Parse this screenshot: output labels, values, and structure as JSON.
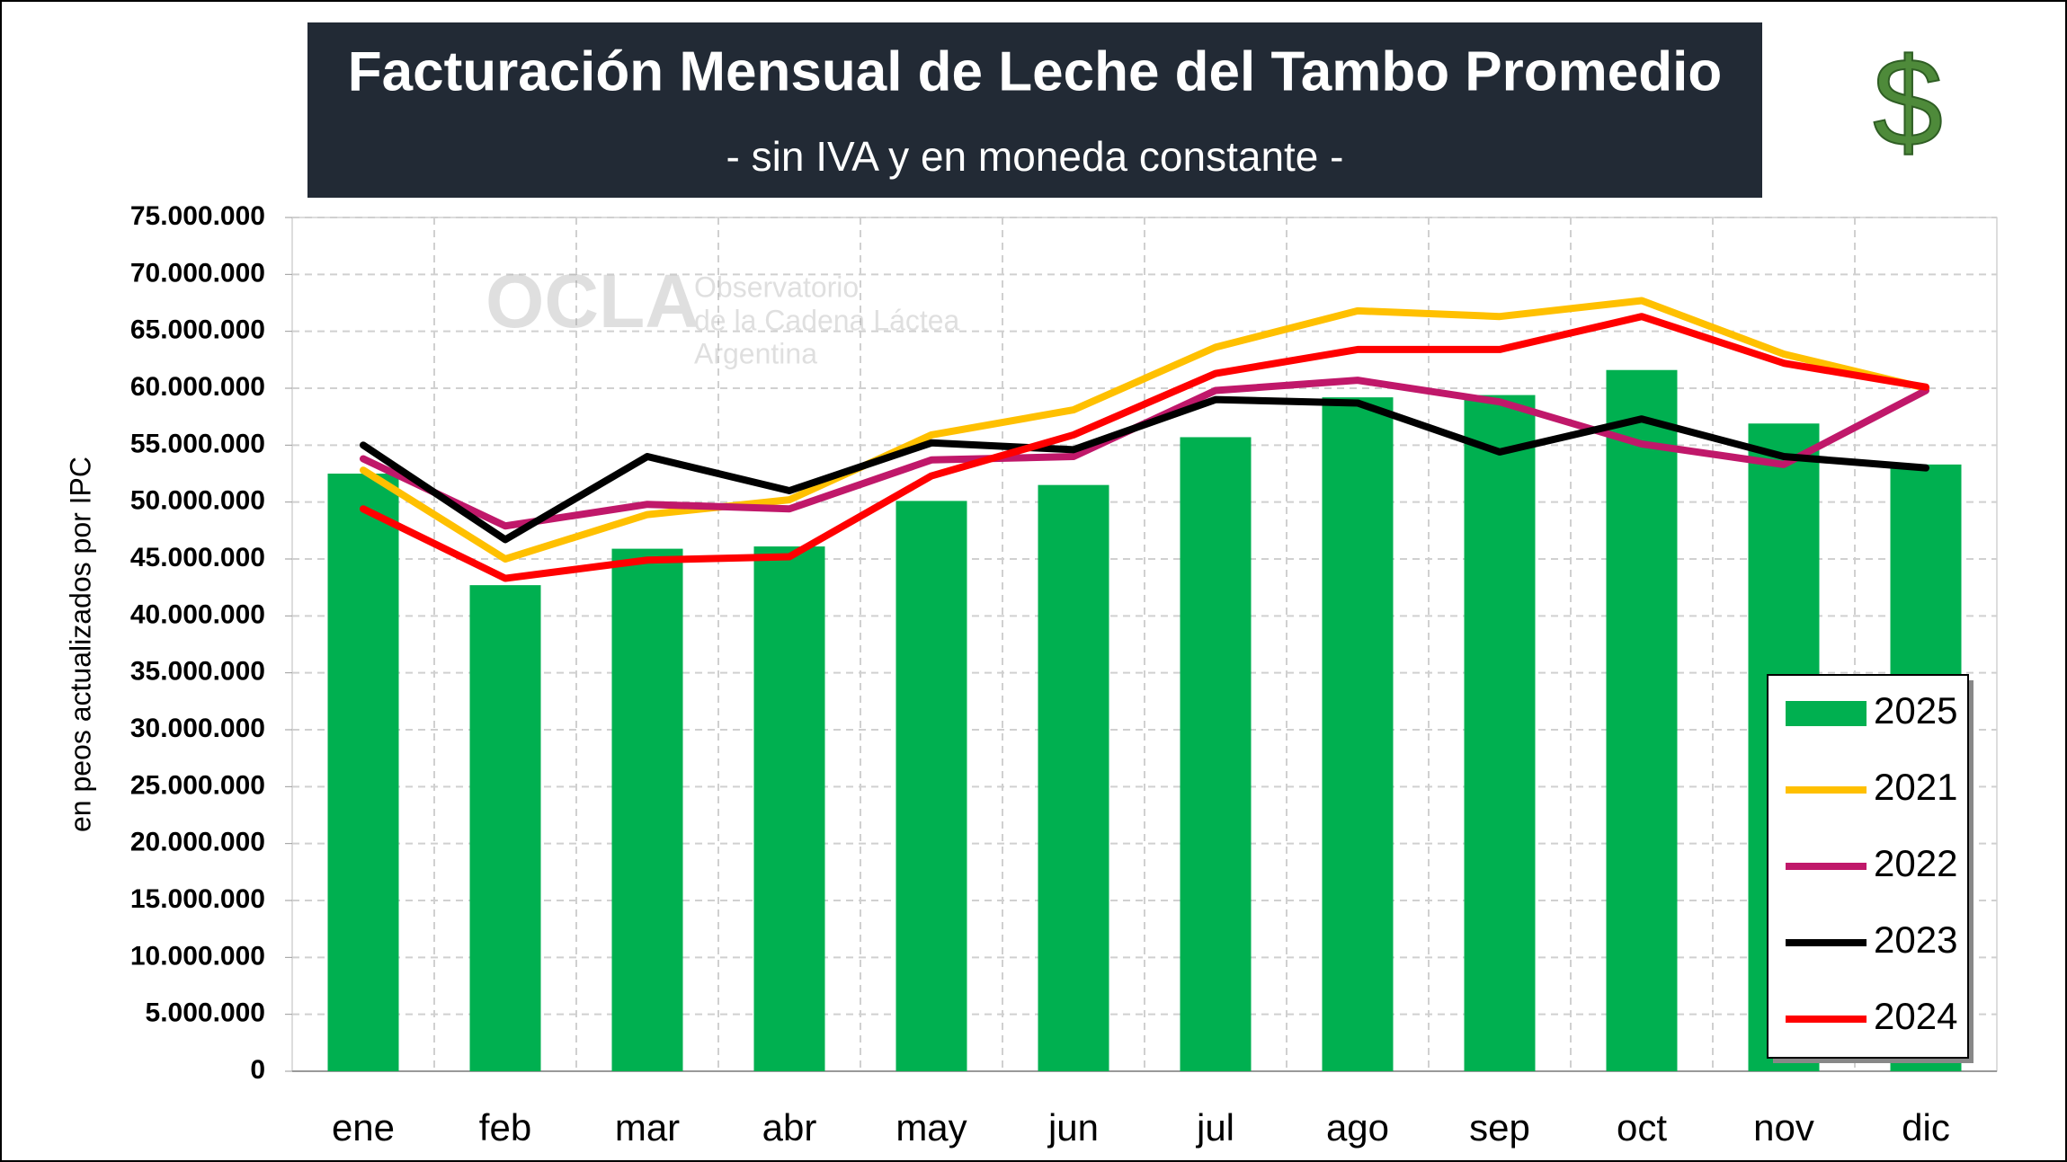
{
  "chart_data": {
    "type": "bar",
    "title": "Facturación Mensual de Leche del Tambo Promedio",
    "subtitle": "- sin IVA y en moneda constante -",
    "icon_text": "$",
    "watermark": {
      "logo": "OCLA",
      "lines": [
        "Observatorio",
        "de la Cadena Láctea",
        "Argentina"
      ]
    },
    "y_label": "en peos actualizados por IPC",
    "categories": [
      "ene",
      "feb",
      "mar",
      "abr",
      "may",
      "jun",
      "jul",
      "ago",
      "sep",
      "oct",
      "nov",
      "dic"
    ],
    "series": [
      {
        "name": "2025",
        "type": "bar",
        "color": "#00b050",
        "values": [
          52500000,
          42700000,
          45900000,
          46100000,
          50100000,
          51500000,
          55700000,
          59200000,
          59400000,
          61600000,
          56900000,
          53300000
        ]
      },
      {
        "name": "2021",
        "type": "line",
        "color": "#ffc000",
        "values": [
          52800000,
          45000000,
          48900000,
          50200000,
          55900000,
          58100000,
          63600000,
          66800000,
          66300000,
          67700000,
          63000000,
          60000000
        ]
      },
      {
        "name": "2022",
        "type": "line",
        "color": "#c0186a",
        "values": [
          53800000,
          47900000,
          49800000,
          49400000,
          53700000,
          54000000,
          59800000,
          60700000,
          58800000,
          55100000,
          53300000,
          59800000
        ]
      },
      {
        "name": "2023",
        "type": "line",
        "color": "#000000",
        "values": [
          55000000,
          46700000,
          54000000,
          51000000,
          55200000,
          54600000,
          59000000,
          58700000,
          54400000,
          57300000,
          54000000,
          53000000
        ]
      },
      {
        "name": "2024",
        "type": "line",
        "color": "#ff0000",
        "values": [
          49400000,
          43300000,
          44900000,
          45200000,
          52300000,
          55900000,
          61300000,
          63400000,
          63400000,
          66300000,
          62200000,
          60100000
        ]
      }
    ],
    "ylim": [
      0,
      75000000
    ],
    "yticks": [
      0,
      {
        "value": 5000000,
        "label": "5.000.000"
      },
      {
        "value": 10000000,
        "label": "10.000.000"
      },
      {
        "value": 15000000,
        "label": "15.000.000"
      },
      {
        "value": 20000000,
        "label": "20.000.000"
      },
      {
        "value": 25000000,
        "label": "25.000.000"
      },
      {
        "value": 30000000,
        "label": "30.000.000"
      },
      {
        "value": 35000000,
        "label": "35.000.000"
      },
      {
        "value": 40000000,
        "label": "40.000.000"
      },
      {
        "value": 45000000,
        "label": "45.000.000"
      },
      {
        "value": 50000000,
        "label": "50.000.000"
      },
      {
        "value": 55000000,
        "label": "55.000.000"
      },
      {
        "value": 60000000,
        "label": "60.000.000"
      },
      {
        "value": 65000000,
        "label": "65.000.000"
      },
      {
        "value": 70000000,
        "label": "70.000.000"
      },
      {
        "value": 75000000,
        "label": "75.000.000"
      }
    ],
    "grid": true,
    "legend_position": "bottom-right"
  }
}
